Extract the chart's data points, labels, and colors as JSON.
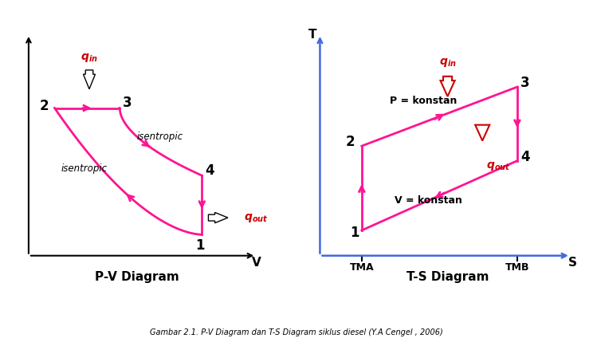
{
  "cycle_color": "#FF1493",
  "red_color": "#CC0000",
  "axis_color_pv": "#000000",
  "axis_color_ts": "#4169E1",
  "text_color": "#000000",
  "bg_color": "#FFFFFF",
  "pv_title": "P-V Diagram",
  "ts_title": "T-S Diagram",
  "caption": "Gambar 2.1. P-V Diagram dan T-S Diagram siklus diesel (Y.A Cengel , 2006)"
}
